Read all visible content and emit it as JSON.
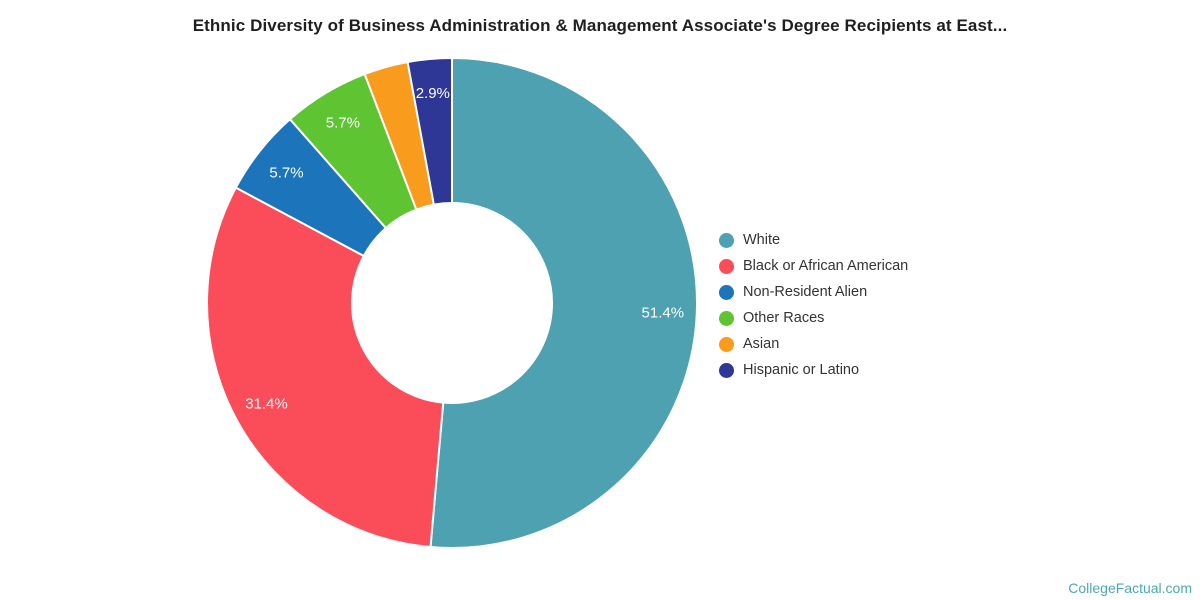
{
  "title": "Ethnic Diversity of Business Administration & Management Associate's Degree Recipients at East...",
  "footer": {
    "link_label": "CollegeFactual.com",
    "color": "#4CA8B5"
  },
  "chart_data": {
    "type": "pie",
    "subtype": "donut",
    "title": "Ethnic Diversity of Business Administration & Management Associate's Degree Recipients at East...",
    "units": "%",
    "legend_position": "right",
    "start_angle_deg": 0,
    "direction": "clockwise",
    "inner_radius_ratio": 0.41,
    "series": [
      {
        "name": "White",
        "value": 51.4,
        "label": "51.4%",
        "label_visible": true,
        "color": "#4DA1B0"
      },
      {
        "name": "Black or African American",
        "value": 31.4,
        "label": "31.4%",
        "label_visible": true,
        "color": "#FB4D59"
      },
      {
        "name": "Non-Resident Alien",
        "value": 5.7,
        "label": "5.7%",
        "label_visible": true,
        "color": "#1C74BB"
      },
      {
        "name": "Other Races",
        "value": 5.7,
        "label": "5.7%",
        "label_visible": true,
        "color": "#5EC431"
      },
      {
        "name": "Asian",
        "value": 2.9,
        "label": "2.9%",
        "label_visible": false,
        "color": "#F99B1C"
      },
      {
        "name": "Hispanic or Latino",
        "value": 2.9,
        "label": "2.9%",
        "label_visible": true,
        "color": "#2E3796"
      }
    ]
  }
}
